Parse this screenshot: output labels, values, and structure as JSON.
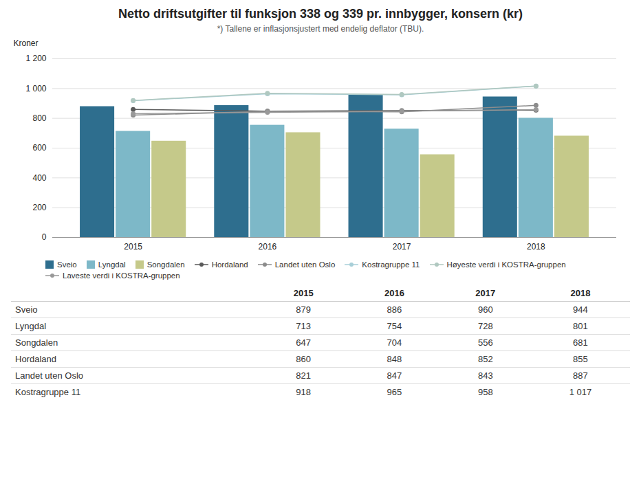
{
  "chart_data": {
    "type": "bar",
    "title": "Netto driftsutgifter til funksjon 338 og 339 pr. innbygger, konsern (kr)",
    "subtitle": "*) Tallene er inflasjonsjustert med endelig deflator (TBU).",
    "ylabel": "Kroner",
    "categories": [
      "2015",
      "2016",
      "2017",
      "2018"
    ],
    "series": [
      {
        "name": "Sveio",
        "type": "bar",
        "color": "#2e6e8e",
        "values": [
          879,
          886,
          960,
          944
        ]
      },
      {
        "name": "Lyngdal",
        "type": "bar",
        "color": "#7db8c8",
        "values": [
          713,
          754,
          728,
          801
        ]
      },
      {
        "name": "Songdalen",
        "type": "bar",
        "color": "#c5c98a",
        "values": [
          647,
          704,
          556,
          681
        ]
      },
      {
        "name": "Hordaland",
        "type": "line",
        "marker": "circle",
        "color": "#5a5a5a",
        "values": [
          860,
          848,
          852,
          855
        ]
      },
      {
        "name": "Landet uten Oslo",
        "type": "line",
        "marker": "circle",
        "color": "#8c8c8c",
        "values": [
          821,
          847,
          843,
          887
        ]
      },
      {
        "name": "Kostragruppe 11",
        "type": "line",
        "marker": "circle",
        "color": "#a8cfd8",
        "values": [
          918,
          965,
          958,
          1017
        ]
      },
      {
        "name": "Høyeste verdi i KOSTRA-gruppen",
        "type": "line",
        "marker": "circle",
        "color": "#b0c8c0",
        "values": [
          920,
          968,
          960,
          1017
        ]
      },
      {
        "name": "Laveste verdi i KOSTRA-gruppen",
        "type": "line",
        "marker": "circle",
        "color": "#999999",
        "values": [
          831,
          840,
          848,
          858
        ]
      }
    ],
    "ylim": [
      0,
      1200
    ],
    "yticks": [
      0,
      200,
      400,
      600,
      800,
      {
        "value": 1000,
        "label": "1 000"
      },
      {
        "value": 1200,
        "label": "1 200"
      }
    ],
    "grid": true,
    "legend": "bottom",
    "table": {
      "columns": [
        "2015",
        "2016",
        "2017",
        "2018"
      ],
      "rows": [
        {
          "name": "Sveio",
          "values": [
            879,
            886,
            960,
            944
          ]
        },
        {
          "name": "Lyngdal",
          "values": [
            713,
            754,
            728,
            801
          ]
        },
        {
          "name": "Songdalen",
          "values": [
            647,
            704,
            556,
            681
          ]
        },
        {
          "name": "Hordaland",
          "values": [
            860,
            848,
            852,
            855
          ]
        },
        {
          "name": "Landet uten Oslo",
          "values": [
            821,
            847,
            843,
            887
          ]
        },
        {
          "name": "Kostragruppe 11",
          "values": [
            918,
            965,
            958,
            1017
          ],
          "value_labels": [
            "918",
            "965",
            "958",
            "1 017"
          ]
        }
      ]
    }
  }
}
